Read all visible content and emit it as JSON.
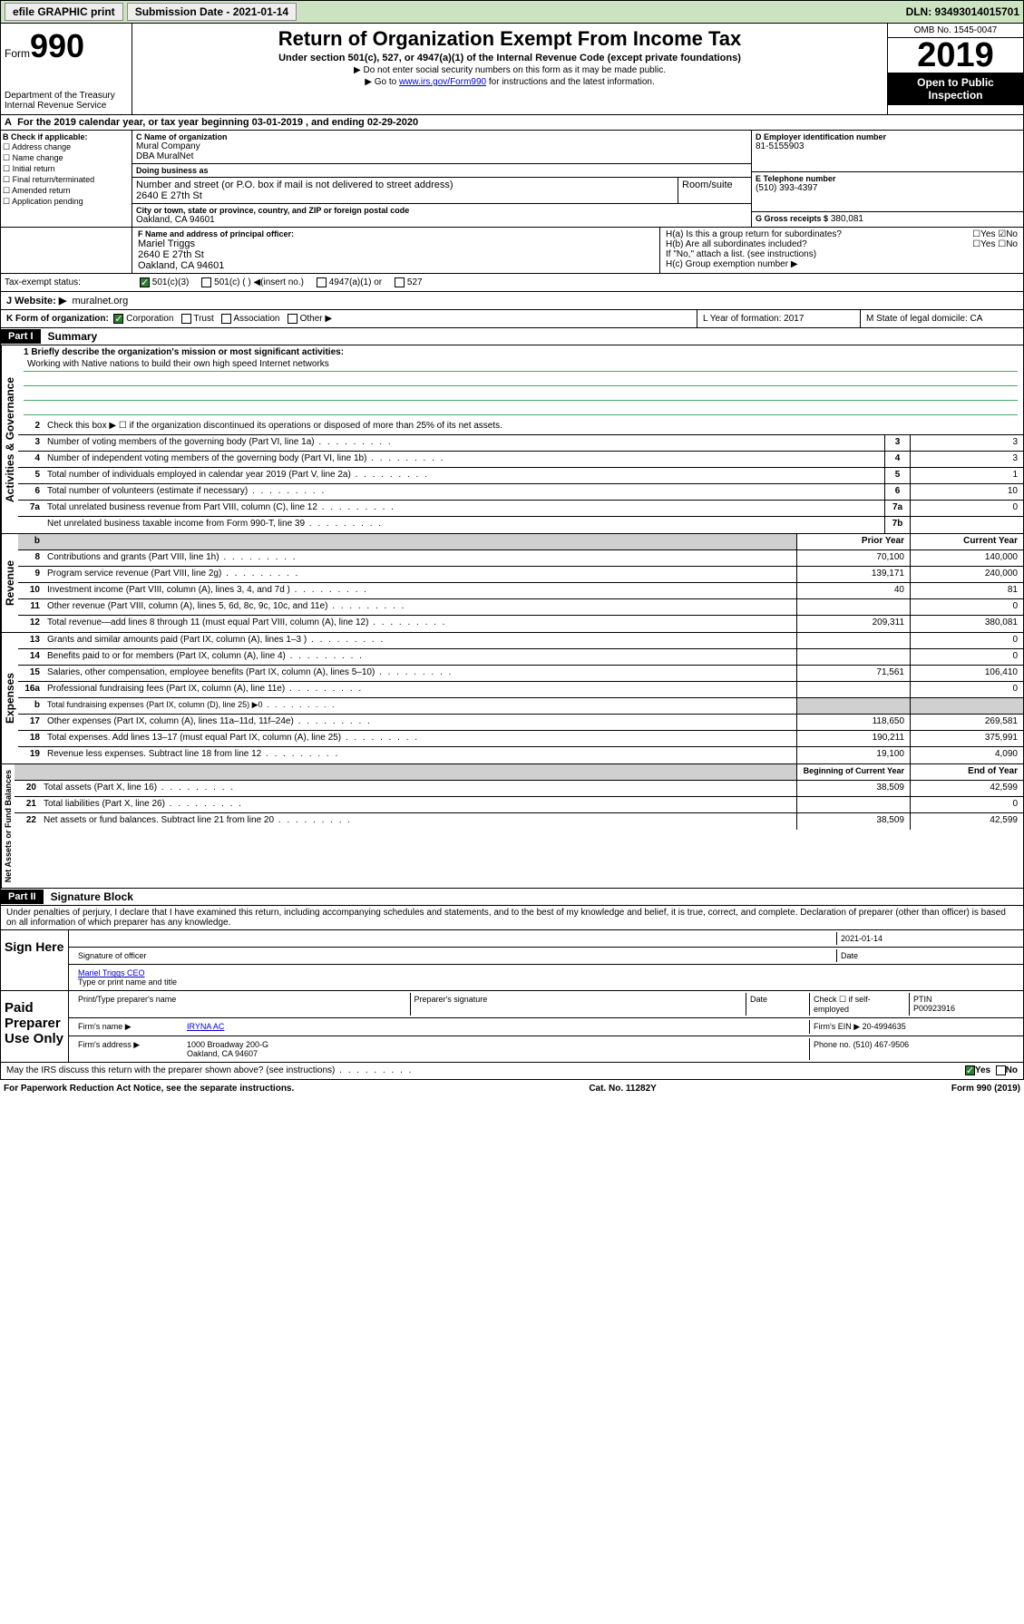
{
  "topbar": {
    "efile": "efile GRAPHIC print",
    "submission": "Submission Date - 2021-01-14",
    "dln": "DLN: 93493014015701"
  },
  "header": {
    "form_label": "Form",
    "form_num": "990",
    "dept": "Department of the Treasury\nInternal Revenue Service",
    "title": "Return of Organization Exempt From Income Tax",
    "subtitle": "Under section 501(c), 527, or 4947(a)(1) of the Internal Revenue Code (except private foundations)",
    "note1": "▶ Do not enter social security numbers on this form as it may be made public.",
    "note2_pre": "▶ Go to ",
    "note2_link": "www.irs.gov/Form990",
    "note2_post": " for instructions and the latest information.",
    "omb": "OMB No. 1545-0047",
    "year": "2019",
    "open": "Open to Public Inspection"
  },
  "period": {
    "text": "For the 2019 calendar year, or tax year beginning 03-01-2019   , and ending 02-29-2020"
  },
  "checkB": {
    "label": "B Check if applicable:",
    "items": [
      "Address change",
      "Name change",
      "Initial return",
      "Final return/terminated",
      "Amended return",
      "Application pending"
    ]
  },
  "org": {
    "c_label": "C Name of organization",
    "name1": "Mural Company",
    "name2": "DBA MuralNet",
    "dba_label": "Doing business as",
    "dba": "",
    "addr_label": "Number and street (or P.O. box if mail is not delivered to street address)",
    "room_label": "Room/suite",
    "street": "2640 E 27th St",
    "city_label": "City or town, state or province, country, and ZIP or foreign postal code",
    "city": "Oakland, CA  94601"
  },
  "boxD": {
    "label": "D Employer identification number",
    "val": "81-5155903"
  },
  "boxE": {
    "label": "E Telephone number",
    "val": "(510) 393-4397"
  },
  "boxG": {
    "label": "G Gross receipts $",
    "val": "380,081"
  },
  "boxF": {
    "label": "F  Name and address of principal officer:",
    "name": "Mariel Triggs",
    "l1": "2640 E 27th St",
    "l2": "Oakland, CA  94601"
  },
  "boxH": {
    "a": "H(a)  Is this a group return for subordinates?",
    "b": "H(b)  Are all subordinates included?",
    "bnote": "If \"No,\" attach a list. (see instructions)",
    "c": "H(c)  Group exemption number ▶"
  },
  "tax_status": {
    "label": "Tax-exempt status:",
    "o1": "501(c)(3)",
    "o2": "501(c) (  ) ◀(insert no.)",
    "o3": "4947(a)(1) or",
    "o4": "527"
  },
  "website": {
    "label": "J  Website: ▶",
    "val": "muralnet.org"
  },
  "korg": {
    "label": "K Form of organization:",
    "o1": "Corporation",
    "o2": "Trust",
    "o3": "Association",
    "o4": "Other ▶",
    "L": "L Year of formation: 2017",
    "M": "M State of legal domicile: CA"
  },
  "part1": {
    "hdr": "Part I",
    "title": "Summary"
  },
  "sidebarLabels": {
    "ag": "Activities & Governance",
    "rev": "Revenue",
    "exp": "Expenses",
    "na": "Net Assets or Fund Balances"
  },
  "mission": {
    "q": "1  Briefly describe the organization's mission or most significant activities:",
    "text": "Working with Native nations to build their own high speed Internet networks"
  },
  "lines": {
    "l2": "Check this box ▶ ☐  if the organization discontinued its operations or disposed of more than 25% of its net assets.",
    "l3": {
      "d": "Number of voting members of the governing body (Part VI, line 1a)",
      "b": "3",
      "v": "3"
    },
    "l4": {
      "d": "Number of independent voting members of the governing body (Part VI, line 1b)",
      "b": "4",
      "v": "3"
    },
    "l5": {
      "d": "Total number of individuals employed in calendar year 2019 (Part V, line 2a)",
      "b": "5",
      "v": "1"
    },
    "l6": {
      "d": "Total number of volunteers (estimate if necessary)",
      "b": "6",
      "v": "10"
    },
    "l7a": {
      "d": "Total unrelated business revenue from Part VIII, column (C), line 12",
      "b": "7a",
      "v": "0"
    },
    "l7b": {
      "d": "Net unrelated business taxable income from Form 990-T, line 39",
      "b": "7b",
      "v": ""
    }
  },
  "colhdrs": {
    "b": "b",
    "prior": "Prior Year",
    "current": "Current Year",
    "bcy": "Beginning of Current Year",
    "eoy": "End of Year"
  },
  "rev": [
    {
      "n": "8",
      "d": "Contributions and grants (Part VIII, line 1h)",
      "p": "70,100",
      "c": "140,000"
    },
    {
      "n": "9",
      "d": "Program service revenue (Part VIII, line 2g)",
      "p": "139,171",
      "c": "240,000"
    },
    {
      "n": "10",
      "d": "Investment income (Part VIII, column (A), lines 3, 4, and 7d )",
      "p": "40",
      "c": "81"
    },
    {
      "n": "11",
      "d": "Other revenue (Part VIII, column (A), lines 5, 6d, 8c, 9c, 10c, and 11e)",
      "p": "",
      "c": "0"
    },
    {
      "n": "12",
      "d": "Total revenue—add lines 8 through 11 (must equal Part VIII, column (A), line 12)",
      "p": "209,311",
      "c": "380,081"
    }
  ],
  "exp": [
    {
      "n": "13",
      "d": "Grants and similar amounts paid (Part IX, column (A), lines 1–3 )",
      "p": "",
      "c": "0"
    },
    {
      "n": "14",
      "d": "Benefits paid to or for members (Part IX, column (A), line 4)",
      "p": "",
      "c": "0"
    },
    {
      "n": "15",
      "d": "Salaries, other compensation, employee benefits (Part IX, column (A), lines 5–10)",
      "p": "71,561",
      "c": "106,410"
    },
    {
      "n": "16a",
      "d": "Professional fundraising fees (Part IX, column (A), line 11e)",
      "p": "",
      "c": "0"
    },
    {
      "n": "b",
      "d": "Total fundraising expenses (Part IX, column (D), line 25) ▶0",
      "p": "",
      "c": "",
      "shade": true,
      "small": true
    },
    {
      "n": "17",
      "d": "Other expenses (Part IX, column (A), lines 11a–11d, 11f–24e)",
      "p": "118,650",
      "c": "269,581"
    },
    {
      "n": "18",
      "d": "Total expenses. Add lines 13–17 (must equal Part IX, column (A), line 25)",
      "p": "190,211",
      "c": "375,991"
    },
    {
      "n": "19",
      "d": "Revenue less expenses. Subtract line 18 from line 12",
      "p": "19,100",
      "c": "4,090"
    }
  ],
  "na": [
    {
      "n": "20",
      "d": "Total assets (Part X, line 16)",
      "p": "38,509",
      "c": "42,599"
    },
    {
      "n": "21",
      "d": "Total liabilities (Part X, line 26)",
      "p": "",
      "c": "0"
    },
    {
      "n": "22",
      "d": "Net assets or fund balances. Subtract line 21 from line 20",
      "p": "38,509",
      "c": "42,599"
    }
  ],
  "part2": {
    "hdr": "Part II",
    "title": "Signature Block"
  },
  "perjury": "Under penalties of perjury, I declare that I have examined this return, including accompanying schedules and statements, and to the best of my knowledge and belief, it is true, correct, and complete. Declaration of preparer (other than officer) is based on all information of which preparer has any knowledge.",
  "sign": {
    "here": "Sign Here",
    "date": "2021-01-14",
    "sig_lbl": "Signature of officer",
    "date_lbl": "Date",
    "name": "Mariel Triggs  CEO",
    "name_lbl": "Type or print name and title"
  },
  "paid": {
    "title": "Paid Preparer Use Only",
    "h1": "Print/Type preparer's name",
    "h2": "Preparer's signature",
    "h3": "Date",
    "h4": "Check ☐ if self-employed",
    "h5": "PTIN",
    "ptin": "P00923916",
    "firm_lbl": "Firm's name    ▶",
    "firm": "IRYNA AC",
    "ein_lbl": "Firm's EIN ▶",
    "ein": "20-4994635",
    "addr_lbl": "Firm's address ▶",
    "addr1": "1000 Broadway 200-G",
    "addr2": "Oakland, CA  94607",
    "phone_lbl": "Phone no.",
    "phone": "(510) 467-9506"
  },
  "discuss": "May the IRS discuss this return with the preparer shown above? (see instructions)",
  "footer": {
    "l": "For Paperwork Reduction Act Notice, see the separate instructions.",
    "m": "Cat. No. 11282Y",
    "r": "Form 990 (2019)"
  },
  "yesno": {
    "yes": "Yes",
    "no": "No"
  }
}
